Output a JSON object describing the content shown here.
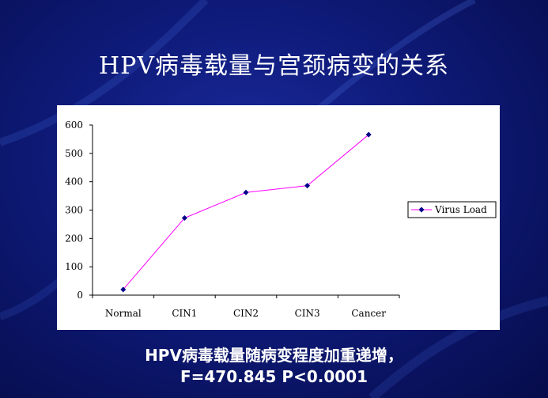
{
  "slide": {
    "title": "HPV病毒载量与宫颈病变的关系",
    "caption_line1": "HPV病毒载量随病变程度加重递增，",
    "caption_line2": "F=470.845 P<0.0001"
  },
  "chart_data": {
    "type": "line",
    "categories": [
      "Normal",
      "CIN1",
      "CIN2",
      "CIN3",
      "Cancer"
    ],
    "series": [
      {
        "name": "Virus Load",
        "values": [
          20,
          272,
          362,
          386,
          566
        ],
        "color": "#ff00ff",
        "marker_color": "#00008b"
      }
    ],
    "title": "",
    "xlabel": "",
    "ylabel": "",
    "ylim": [
      0,
      600
    ],
    "yticks": [
      0,
      100,
      200,
      300,
      400,
      500,
      600
    ],
    "grid": false,
    "legend": "right"
  }
}
